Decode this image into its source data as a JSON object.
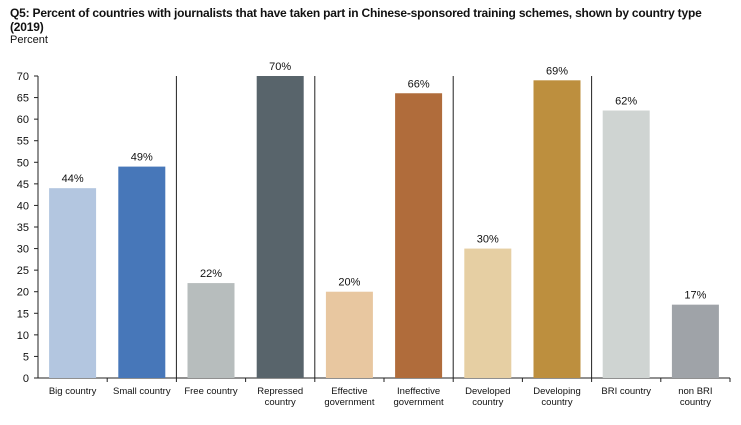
{
  "chart_data": {
    "type": "bar",
    "title": "Q5: Percent of countries with journalists that have taken part in Chinese-sponsored training schemes, shown by country type (2019)",
    "ylabel": "Percent",
    "xlabel": "",
    "ylim": [
      0,
      70
    ],
    "yticks": [
      0,
      5,
      10,
      15,
      20,
      25,
      30,
      35,
      40,
      45,
      50,
      55,
      60,
      65,
      70
    ],
    "grid": false,
    "legend": "none",
    "groups": [
      {
        "categories": [
          "Big country",
          "Small country"
        ]
      },
      {
        "categories": [
          "Free country",
          "Repressed country"
        ]
      },
      {
        "categories": [
          "Effective government",
          "Ineffective government"
        ]
      },
      {
        "categories": [
          "Developed country",
          "Developing country"
        ]
      },
      {
        "categories": [
          "BRI country",
          "non BRI country"
        ]
      }
    ],
    "categories": [
      "Big country",
      "Small country",
      "Free country",
      "Repressed country",
      "Effective government",
      "Ineffective government",
      "Developed country",
      "Developing country",
      "BRI country",
      "non BRI country"
    ],
    "category_lines": [
      [
        "Big country"
      ],
      [
        "Small country"
      ],
      [
        "Free country"
      ],
      [
        "Repressed",
        "country"
      ],
      [
        "Effective",
        "government"
      ],
      [
        "Ineffective",
        "government"
      ],
      [
        "Developed",
        "country"
      ],
      [
        "Developing",
        "country"
      ],
      [
        "BRI country"
      ],
      [
        "non BRI",
        "country"
      ]
    ],
    "values": [
      44,
      49,
      22,
      70,
      20,
      66,
      30,
      69,
      62,
      17
    ],
    "value_labels": [
      "44%",
      "49%",
      "22%",
      "70%",
      "20%",
      "66%",
      "30%",
      "69%",
      "62%",
      "17%"
    ],
    "colors": [
      "#b3c6e0",
      "#4777b9",
      "#b7bdbd",
      "#58646b",
      "#e8c7a0",
      "#b06c3b",
      "#e6cfa3",
      "#bd8f3e",
      "#cfd4d2",
      "#9fa3a8"
    ]
  }
}
